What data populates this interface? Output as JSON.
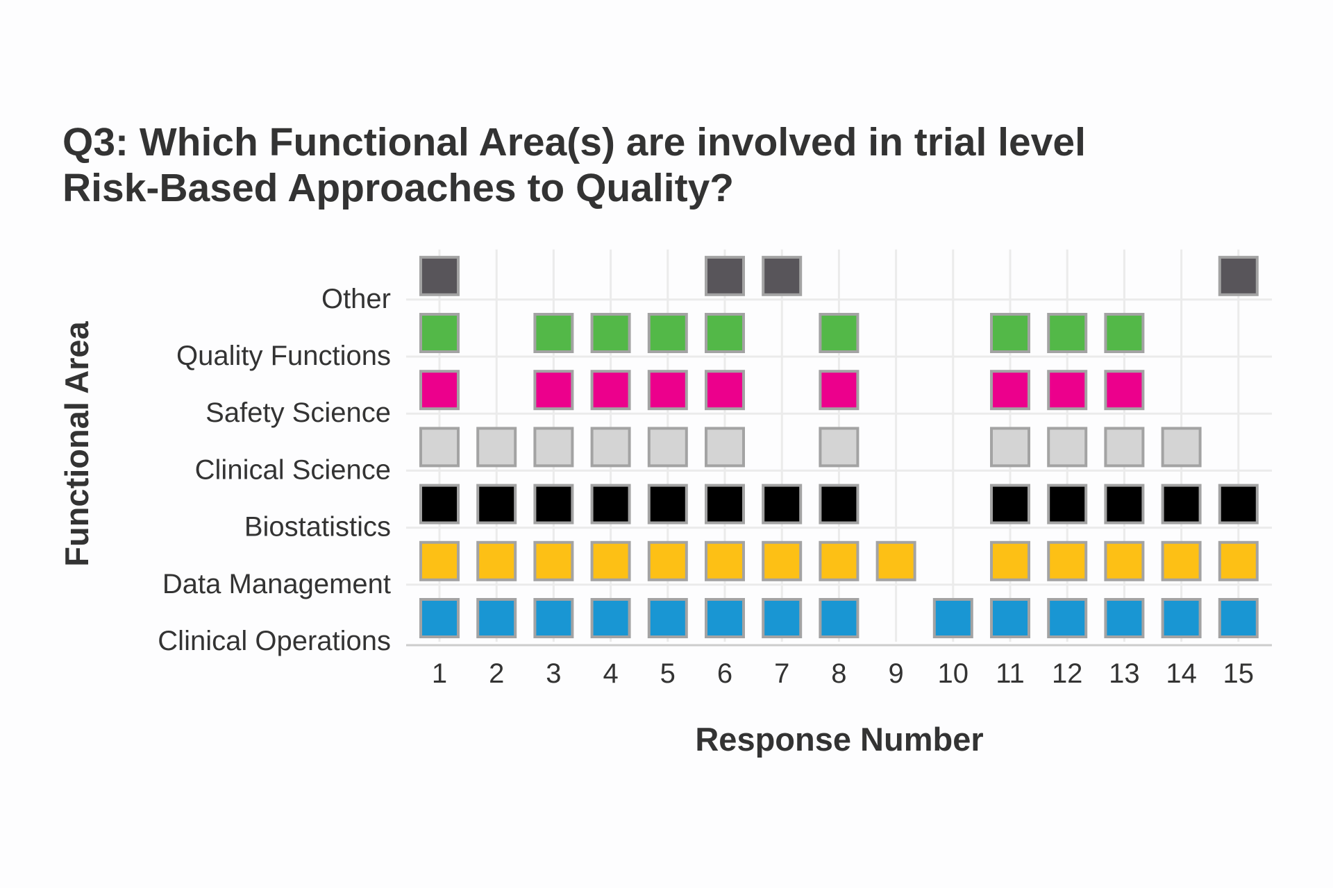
{
  "chart_data": {
    "type": "scatter",
    "title": "Q3: Which Functional Area(s) are involved in trial level Risk-Based Approaches to Quality?",
    "title_lines": [
      "Q3: Which Functional Area(s) are involved in trial level",
      "Risk-Based Approaches to Quality?"
    ],
    "xlabel": "Response Number",
    "ylabel": "Functional Area",
    "x_ticks": [
      1,
      2,
      3,
      4,
      5,
      6,
      7,
      8,
      9,
      10,
      11,
      12,
      13,
      14,
      15
    ],
    "xlim": [
      1,
      15
    ],
    "grid": true,
    "legend": "none",
    "categories": [
      "Clinical Operations",
      "Data Management",
      "Biostatistics",
      "Clinical Science",
      "Safety Science",
      "Quality Functions",
      "Other"
    ],
    "series": [
      {
        "category": "Clinical Operations",
        "color": "#1996d3",
        "responses": [
          1,
          2,
          3,
          4,
          5,
          6,
          7,
          8,
          10,
          11,
          12,
          13,
          14,
          15
        ]
      },
      {
        "category": "Data Management",
        "color": "#fdc015",
        "responses": [
          1,
          2,
          3,
          4,
          5,
          6,
          7,
          8,
          9,
          11,
          12,
          13,
          14,
          15
        ]
      },
      {
        "category": "Biostatistics",
        "color": "#000000",
        "responses": [
          1,
          2,
          3,
          4,
          5,
          6,
          7,
          8,
          11,
          12,
          13,
          14,
          15
        ]
      },
      {
        "category": "Clinical Science",
        "color": "#d4d4d4",
        "responses": [
          1,
          2,
          3,
          4,
          5,
          6,
          8,
          11,
          12,
          13,
          14
        ]
      },
      {
        "category": "Safety Science",
        "color": "#ec008c",
        "responses": [
          1,
          3,
          4,
          5,
          6,
          8,
          11,
          12,
          13
        ]
      },
      {
        "category": "Quality Functions",
        "color": "#53b848",
        "responses": [
          1,
          3,
          4,
          5,
          6,
          8,
          11,
          12,
          13
        ]
      },
      {
        "category": "Other",
        "color": "#58555a",
        "responses": [
          1,
          6,
          7,
          15
        ]
      }
    ],
    "marker_border_color": "#a3a3a3",
    "grid_color": "#ebebeb",
    "axis_color": "#cccccc"
  }
}
